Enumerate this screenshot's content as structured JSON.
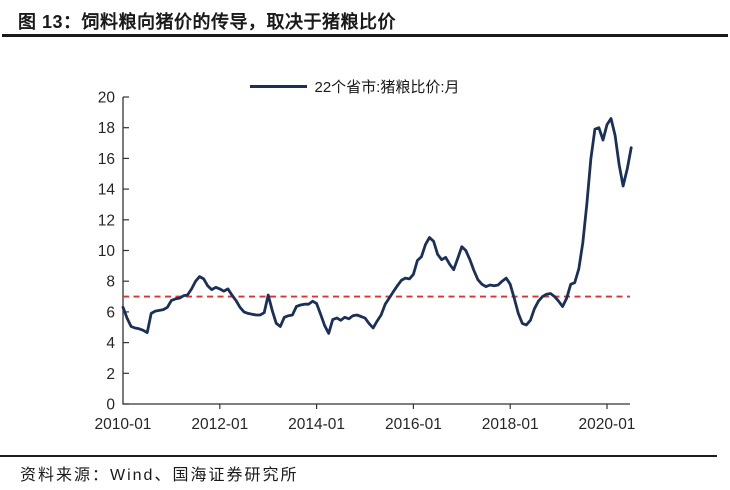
{
  "header": {
    "title": "图 13：饲料粮向猪价的传导，取决于猪粮比价"
  },
  "legend": {
    "label": "22个省市:猪粮比价:月"
  },
  "footer": {
    "source": "资料来源：Wind、国海证券研究所"
  },
  "colors": {
    "series": "#1B3058",
    "reference": "#E03131",
    "axis": "#333333",
    "text": "#262626"
  },
  "chart_data": {
    "type": "line",
    "title": "图 13：饲料粮向猪价的传导，取决于猪粮比价",
    "xlabel": "",
    "ylabel": "",
    "ylim": [
      0,
      20
    ],
    "grid": false,
    "legend_position": "top-center",
    "y_ticks": [
      0,
      2,
      4,
      6,
      8,
      10,
      12,
      14,
      16,
      18,
      20
    ],
    "x_ticks": [
      {
        "label": "2010-01",
        "month": 0
      },
      {
        "label": "2012-01",
        "month": 24
      },
      {
        "label": "2014-01",
        "month": 48
      },
      {
        "label": "2016-01",
        "month": 72
      },
      {
        "label": "2018-01",
        "month": 96
      },
      {
        "label": "2020-01",
        "month": 120
      }
    ],
    "reference_line": {
      "value": 7,
      "color": "#E03131",
      "style": "dashed"
    },
    "series": [
      {
        "name": "22个省市:猪粮比价:月",
        "color": "#1B3058",
        "x_start": "2010-01",
        "x_end": "2020-07",
        "x_interval": "month",
        "values": [
          6.3,
          5.6,
          5.05,
          4.95,
          4.9,
          4.8,
          4.65,
          5.9,
          6.05,
          6.1,
          6.15,
          6.3,
          6.75,
          6.85,
          6.9,
          7.05,
          7.1,
          7.5,
          8.0,
          8.3,
          8.15,
          7.7,
          7.45,
          7.6,
          7.5,
          7.35,
          7.5,
          7.1,
          6.75,
          6.3,
          6.0,
          5.9,
          5.85,
          5.8,
          5.8,
          5.95,
          7.1,
          6.1,
          5.25,
          5.05,
          5.65,
          5.75,
          5.8,
          6.35,
          6.45,
          6.5,
          6.5,
          6.7,
          6.55,
          5.85,
          5.1,
          4.6,
          5.5,
          5.6,
          5.45,
          5.65,
          5.55,
          5.75,
          5.8,
          5.7,
          5.6,
          5.25,
          4.95,
          5.4,
          5.8,
          6.5,
          6.9,
          7.3,
          7.7,
          8.05,
          8.2,
          8.15,
          8.45,
          9.35,
          9.6,
          10.4,
          10.85,
          10.6,
          9.75,
          9.4,
          9.55,
          9.1,
          8.75,
          9.5,
          10.25,
          10.0,
          9.4,
          8.7,
          8.1,
          7.8,
          7.65,
          7.75,
          7.7,
          7.75,
          8.0,
          8.2,
          7.8,
          6.9,
          5.9,
          5.25,
          5.15,
          5.45,
          6.2,
          6.7,
          7.0,
          7.15,
          7.2,
          7.0,
          6.7,
          6.35,
          6.9,
          7.8,
          7.9,
          8.8,
          10.5,
          13.0,
          16.0,
          17.9,
          18.0,
          17.2,
          18.2,
          18.6,
          17.5,
          15.6,
          14.2,
          15.3,
          16.7
        ]
      }
    ]
  }
}
